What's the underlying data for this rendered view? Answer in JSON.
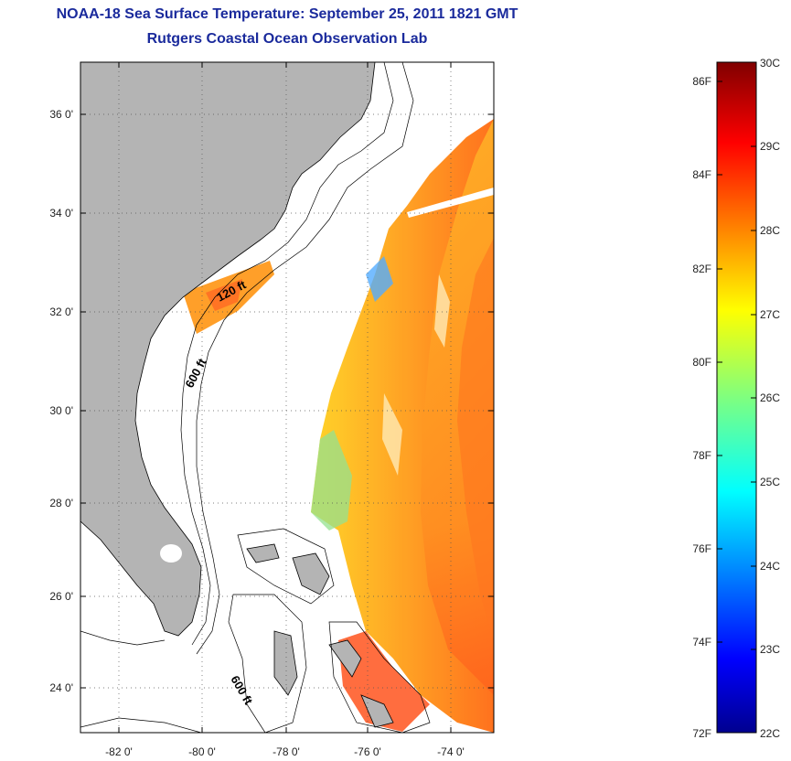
{
  "header": {
    "title": "NOAA-18 Sea Surface Temperature:  September 25, 2011 1821 GMT",
    "subtitle": "Rutgers Coastal Ocean Observation Lab"
  },
  "map": {
    "lat_ticks": [
      "36 0'",
      "34 0'",
      "32 0'",
      "30 0'",
      "28 0'",
      "26 0'",
      "24 0'"
    ],
    "lon_ticks": [
      "-82 0'",
      "-80 0'",
      "-78 0'",
      "-76 0'",
      "-74 0'"
    ],
    "contour_labels": [
      "120 ft",
      "600 ft",
      "600 ft"
    ],
    "land_color": "#b4b4b4",
    "lat_range": [
      23,
      37
    ],
    "lon_range": [
      -83,
      -73
    ]
  },
  "colorbar": {
    "fahrenheit_labels": [
      "86F",
      "84F",
      "82F",
      "80F",
      "78F",
      "76F",
      "74F",
      "72F"
    ],
    "celsius_labels": [
      "30C",
      "29C",
      "28C",
      "27C",
      "26C",
      "25C",
      "24C",
      "23C",
      "22C"
    ],
    "range_c": [
      22,
      30
    ],
    "colormap": "jet"
  }
}
